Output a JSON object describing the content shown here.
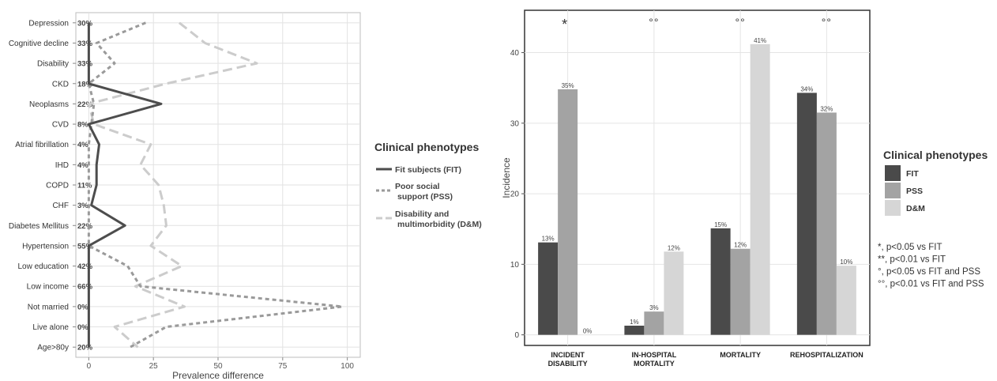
{
  "chart_data": [
    {
      "type": "line",
      "orientation": "horizontal",
      "xlabel": "Prevalence difference",
      "xlim": [
        -5,
        105
      ],
      "xticks": [
        0,
        25,
        50,
        75,
        100
      ],
      "grid": true,
      "categories": [
        "Depression",
        "Cognitive decline",
        "Disability",
        "CKD",
        "Neoplasms",
        "CVD",
        "Atrial fibrillation",
        "IHD",
        "COPD",
        "CHF",
        "Diabetes Mellitus",
        "Hypertension",
        "Low education",
        "Low income",
        "Not married",
        "Live alone",
        "Age>80y"
      ],
      "baseline_labels": [
        "30%",
        "33%",
        "33%",
        "18%",
        "22%",
        "8%",
        "4%",
        "4%",
        "11%",
        "3%",
        "22%",
        "55%",
        "42%",
        "66%",
        "0%",
        "0%",
        "20%"
      ],
      "legend": {
        "title": "Clinical phenotypes",
        "position": "right",
        "entries": [
          "Fit subjects (FIT)",
          "Poor social support (PSS)",
          "Disability and multimorbidity (D&M)"
        ]
      },
      "series": [
        {
          "name": "Fit subjects (FIT)",
          "style": "solid",
          "color": "#4d4d4d",
          "values": [
            0,
            0,
            0,
            0,
            28,
            0,
            4,
            3,
            3,
            1,
            14,
            0,
            0,
            0,
            0,
            0,
            0
          ]
        },
        {
          "name": "Poor social support (PSS)",
          "style": "dotted",
          "color": "#9a9a9a",
          "values": [
            22,
            3,
            10,
            0,
            2,
            1,
            0,
            0,
            0,
            0,
            0,
            0,
            15,
            20,
            98,
            30,
            16
          ]
        },
        {
          "name": "Disability and multimorbidity (D&M)",
          "style": "dashed",
          "color": "#cccccc",
          "values": [
            35,
            45,
            65,
            30,
            0,
            2,
            24,
            20,
            27,
            29,
            30,
            24,
            36,
            18,
            37,
            10,
            19
          ]
        }
      ]
    },
    {
      "type": "bar",
      "ylabel": "Incidence",
      "ylim": [
        -1.5,
        46
      ],
      "yticks": [
        0,
        10,
        20,
        30,
        40
      ],
      "grid": true,
      "categories": [
        "INCIDENT\nDISABILITY",
        "IN-HOSPITAL\nMORTALITY",
        "MORTALITY",
        "REHOSPITALIZATION"
      ],
      "significance_marks": [
        "*",
        "°°",
        "°°",
        "°°"
      ],
      "legend": {
        "title": "Clinical phenotypes",
        "position": "right",
        "entries": [
          "FIT",
          "PSS",
          "D&M"
        ]
      },
      "series": [
        {
          "name": "FIT",
          "color": "#4a4a4a",
          "values": [
            13.1,
            1.3,
            15.1,
            34.3
          ],
          "labels": [
            "13%",
            "1%",
            "15%",
            "34%"
          ]
        },
        {
          "name": "PSS",
          "color": "#a3a3a3",
          "values": [
            34.8,
            3.3,
            12.2,
            31.5
          ],
          "labels": [
            "35%",
            "3%",
            "12%",
            "32%"
          ]
        },
        {
          "name": "D&M",
          "color": "#d6d6d6",
          "values": [
            0,
            11.8,
            41.2,
            9.8
          ],
          "labels": [
            "0%",
            "12%",
            "41%",
            "10%"
          ]
        }
      ],
      "footnotes": [
        "*, p<0.05 vs FIT",
        "**, p<0.01 vs FIT",
        "°, p<0.05 vs FIT and PSS",
        "°°, p<0.01 vs FIT and PSS"
      ]
    }
  ]
}
